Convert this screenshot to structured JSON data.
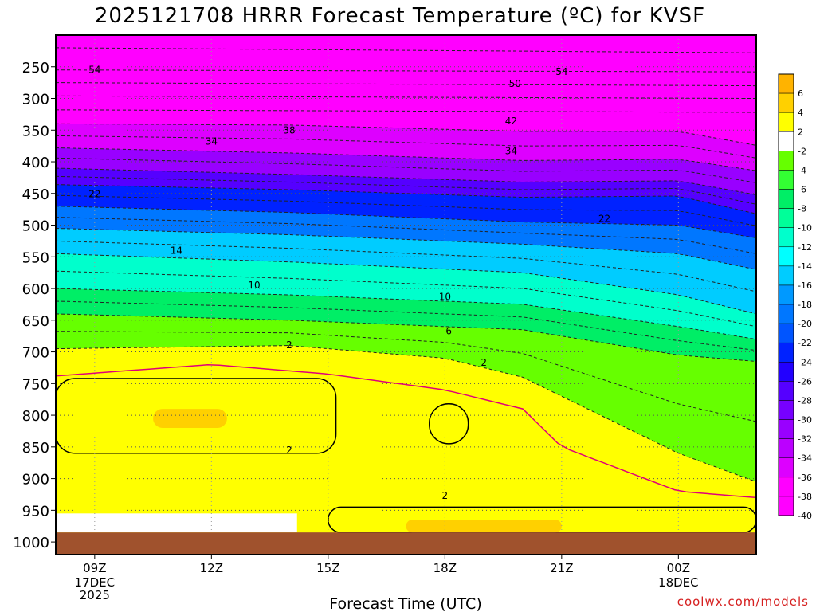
{
  "chart_data": {
    "type": "heatmap",
    "title": "2025121708 HRRR Forecast Temperature (ºC) for KVSF",
    "xlabel": "Forecast Time (UTC)",
    "ylabel": "",
    "credit": "coolwx.com/models",
    "x_ticks": [
      "09Z",
      "12Z",
      "15Z",
      "18Z",
      "21Z",
      "00Z"
    ],
    "x_hours": [
      9,
      12,
      15,
      18,
      21,
      24
    ],
    "x_range": [
      8,
      26
    ],
    "x_date_labels": [
      {
        "hour": 9,
        "lines": [
          "17DEC",
          "2025"
        ]
      },
      {
        "hour": 24,
        "lines": [
          "18DEC"
        ]
      }
    ],
    "y_unit": "hPa",
    "y_range": [
      1020,
      200
    ],
    "y_ticks": [
      250,
      300,
      350,
      400,
      450,
      500,
      550,
      600,
      650,
      700,
      750,
      800,
      850,
      900,
      950,
      1000
    ],
    "surface_pressure": 985,
    "colorbar": {
      "levels": [
        6,
        4,
        2,
        -2,
        -4,
        -6,
        -8,
        -10,
        -12,
        -14,
        -16,
        -18,
        -20,
        -22,
        -24,
        -26,
        -28,
        -30,
        -32,
        -34,
        -36,
        -38,
        -40
      ],
      "colors": [
        "#ffb300",
        "#ffd000",
        "#ffff00",
        "#ffffff",
        "#66ff00",
        "#33ff33",
        "#00ee66",
        "#00ff99",
        "#00ffcc",
        "#00ffff",
        "#00ccff",
        "#0099ff",
        "#0077ff",
        "#0055ff",
        "#0022ff",
        "#2200ff",
        "#5500ff",
        "#7700ff",
        "#9900ff",
        "#bb00ff",
        "#dd00ff",
        "#ff00ff",
        "#ff00ff"
      ]
    },
    "contour_labels": [
      {
        "text": "54",
        "hour": 9.0,
        "p": 255
      },
      {
        "text": "54",
        "hour": 21.0,
        "p": 258
      },
      {
        "text": "50",
        "hour": 19.8,
        "p": 277
      },
      {
        "text": "42",
        "hour": 19.7,
        "p": 336
      },
      {
        "text": "38",
        "hour": 14.0,
        "p": 350
      },
      {
        "text": "34",
        "hour": 12.0,
        "p": 368
      },
      {
        "text": "34",
        "hour": 19.7,
        "p": 383
      },
      {
        "text": "22",
        "hour": 9.0,
        "p": 451
      },
      {
        "text": "22",
        "hour": 22.1,
        "p": 490
      },
      {
        "text": "14",
        "hour": 11.1,
        "p": 540
      },
      {
        "text": "10",
        "hour": 13.1,
        "p": 595
      },
      {
        "text": "10",
        "hour": 18.0,
        "p": 613
      },
      {
        "text": "6",
        "hour": 18.1,
        "p": 667
      },
      {
        "text": "2",
        "hour": 14.0,
        "p": 689
      },
      {
        "text": "2",
        "hour": 19.0,
        "p": 717
      },
      {
        "text": "2",
        "hour": 14.0,
        "p": 855
      },
      {
        "text": "2",
        "hour": 18.0,
        "p": 927
      }
    ],
    "fill_bands": [
      {
        "temp": -40,
        "p_at": [
          [
            8,
            200
          ],
          [
            26,
            200
          ]
        ]
      },
      {
        "temp": -36,
        "p_at": [
          [
            8,
            340
          ],
          [
            14,
            342
          ],
          [
            20,
            352
          ],
          [
            24,
            352
          ],
          [
            26,
            374
          ]
        ]
      },
      {
        "temp": -32,
        "p_at": [
          [
            8,
            378
          ],
          [
            14,
            386
          ],
          [
            20,
            398
          ],
          [
            24,
            396
          ],
          [
            26,
            414
          ]
        ]
      },
      {
        "temp": -28,
        "p_at": [
          [
            8,
            410
          ],
          [
            14,
            420
          ],
          [
            20,
            432
          ],
          [
            24,
            430
          ],
          [
            26,
            452
          ]
        ]
      },
      {
        "temp": -24,
        "p_at": [
          [
            8,
            436
          ],
          [
            14,
            444
          ],
          [
            20,
            456
          ],
          [
            24,
            454
          ],
          [
            26,
            482
          ]
        ]
      },
      {
        "temp": -20,
        "p_at": [
          [
            8,
            470
          ],
          [
            14,
            480
          ],
          [
            20,
            495
          ],
          [
            24,
            500
          ],
          [
            26,
            520
          ]
        ]
      },
      {
        "temp": -16,
        "p_at": [
          [
            8,
            505
          ],
          [
            14,
            515
          ],
          [
            20,
            530
          ],
          [
            24,
            545
          ],
          [
            26,
            570
          ]
        ]
      },
      {
        "temp": -12,
        "p_at": [
          [
            8,
            545
          ],
          [
            14,
            558
          ],
          [
            20,
            575
          ],
          [
            24,
            610
          ],
          [
            26,
            640
          ]
        ]
      },
      {
        "temp": -8,
        "p_at": [
          [
            8,
            600
          ],
          [
            14,
            610
          ],
          [
            20,
            625
          ],
          [
            24,
            660
          ],
          [
            26,
            680
          ]
        ]
      },
      {
        "temp": -4,
        "p_at": [
          [
            8,
            640
          ],
          [
            14,
            650
          ],
          [
            20,
            665
          ],
          [
            24,
            705
          ],
          [
            26,
            715
          ]
        ]
      },
      {
        "temp": 0,
        "p_at": [
          [
            8,
            695
          ],
          [
            14,
            690
          ],
          [
            18,
            710
          ],
          [
            20,
            740
          ],
          [
            24,
            860
          ],
          [
            26,
            905
          ]
        ]
      }
    ],
    "warm_regions": [
      {
        "temp": 2,
        "hour_range": [
          8,
          15.2
        ],
        "p_range": [
          742,
          860
        ]
      },
      {
        "temp": 2,
        "hour_range": [
          17.6,
          18.6
        ],
        "p_range": [
          782,
          845
        ]
      },
      {
        "temp": 2,
        "hour_range": [
          15,
          26
        ],
        "p_range": [
          945,
          985
        ]
      },
      {
        "temp": 4,
        "hour_range": [
          10.5,
          12.4
        ],
        "p_range": [
          790,
          820
        ]
      },
      {
        "temp": 4,
        "hour_range": [
          17,
          21
        ],
        "p_range": [
          965,
          985
        ]
      }
    ],
    "near_surface_cold": {
      "temp": -2,
      "hour_range": [
        8,
        14.2
      ],
      "p_range": [
        955,
        985
      ]
    }
  }
}
